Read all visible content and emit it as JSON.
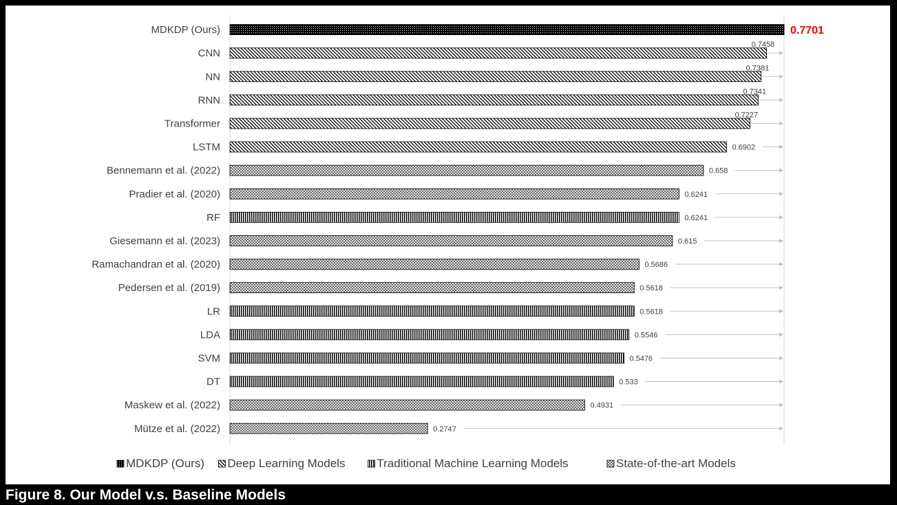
{
  "caption": "Figure 8. Our Model v.s. Baseline Models",
  "chart_data": {
    "type": "bar",
    "orientation": "horizontal",
    "xlim": [
      0,
      0.7701
    ],
    "grid": false,
    "legend_position": "bottom",
    "reference_arrows": true,
    "categories": [
      "MDKDP (Ours)",
      "CNN",
      "NN",
      "RNN",
      "Transformer",
      "LSTM",
      "Bennemann et al. (2022)",
      "Pradier et al. (2020)",
      "RF",
      "Giesemann et al. (2023)",
      "Ramachandran et al. (2020)",
      "Pedersen et al. (2019)",
      "LR",
      "LDA",
      "SVM",
      "DT",
      "Maskew et al. (2022)",
      "Mütze et al. (2022)"
    ],
    "values": [
      0.7701,
      0.7458,
      0.7381,
      0.7341,
      0.7227,
      0.6902,
      0.658,
      0.6241,
      0.6241,
      0.615,
      0.5686,
      0.5618,
      0.5618,
      0.5546,
      0.5476,
      0.533,
      0.4931,
      0.2747
    ],
    "value_labels": [
      "0.7701",
      "0.7458",
      "0.7381",
      "0.7341",
      "0.7227",
      "0.6902",
      "0.658",
      "0.6241",
      "0.6241",
      "0.615",
      "0.5686",
      "0.5618",
      "0.5618",
      "0.5546",
      "0.5476",
      "0.533",
      "0.4931",
      "0.2747"
    ],
    "groups": [
      "ours",
      "deep",
      "deep",
      "deep",
      "deep",
      "deep",
      "sota",
      "sota",
      "trad",
      "sota",
      "sota",
      "sota",
      "trad",
      "trad",
      "trad",
      "trad",
      "sota",
      "sota"
    ],
    "legend": [
      {
        "key": "ours",
        "label": "MDKDP (Ours)"
      },
      {
        "key": "deep",
        "label": "Deep Learning Models"
      },
      {
        "key": "trad",
        "label": "Traditional Machine Learning Models"
      },
      {
        "key": "sota",
        "label": "State-of-the-art Models"
      }
    ],
    "colors": {
      "highlight_label": "#ff0000",
      "bar_stroke": "#000000",
      "arrow": "#bfbfbf",
      "axis": "#d9d9d9",
      "text": "#404040"
    }
  }
}
